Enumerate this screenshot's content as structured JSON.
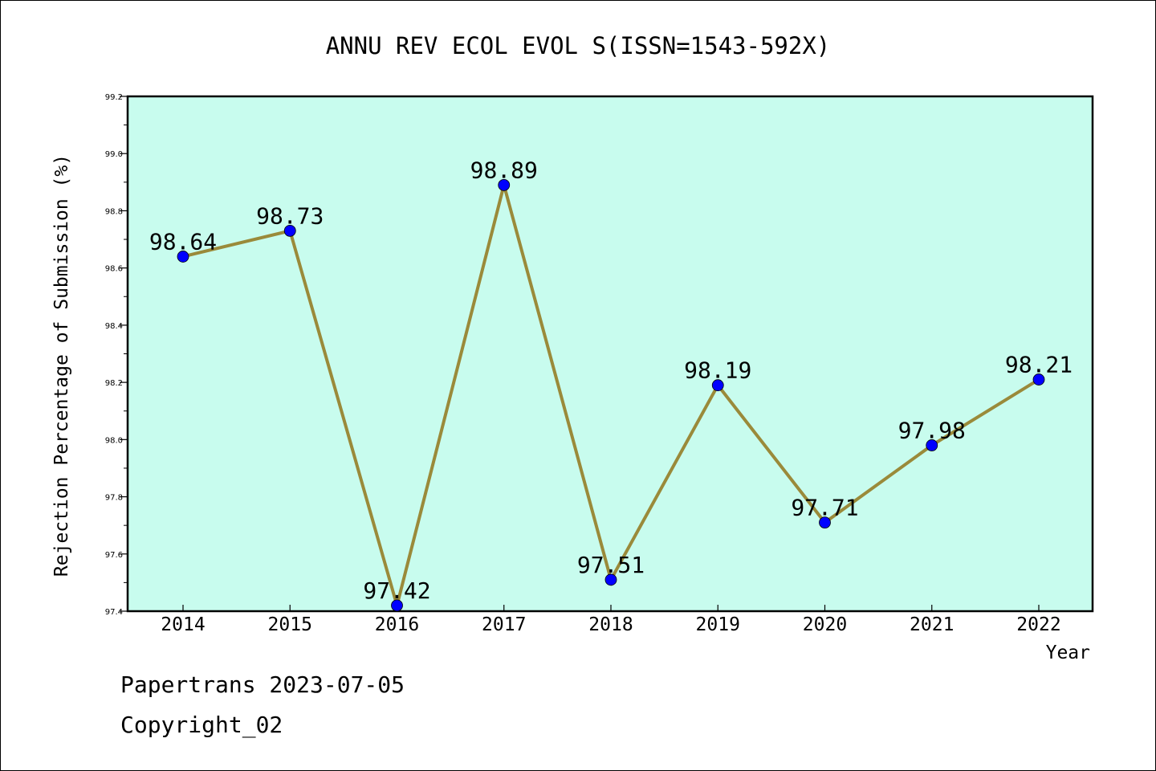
{
  "chart_data": {
    "type": "line",
    "title": "ANNU REV ECOL EVOL S(ISSN=1543-592X)",
    "xlabel": "Year",
    "ylabel": "Rejection Percentage of Submission (%)",
    "x": [
      "2014",
      "2015",
      "2016",
      "2017",
      "2018",
      "2019",
      "2020",
      "2021",
      "2022"
    ],
    "series": [
      {
        "values": [
          98.64,
          98.73,
          97.42,
          98.89,
          97.51,
          98.19,
          97.71,
          97.98,
          98.21
        ],
        "labels": [
          "98.64",
          "98.73",
          "97.42",
          "98.89",
          "97.51",
          "98.19",
          "97.71",
          "97.98",
          "98.21"
        ]
      }
    ],
    "ylim": [
      97.4,
      99.2
    ],
    "yticks": [
      "97.4",
      "97.6",
      "97.8",
      "98.0",
      "98.2",
      "98.4",
      "98.6",
      "98.8",
      "99.0",
      "99.2"
    ],
    "grid": false,
    "colors": {
      "plot_background": "#c8fcee",
      "line": "#9a8a3a",
      "marker": "#0000ff"
    }
  },
  "footer": {
    "date_text": "Papertrans 2023-07-05",
    "copyright_text": "Copyright_02"
  }
}
